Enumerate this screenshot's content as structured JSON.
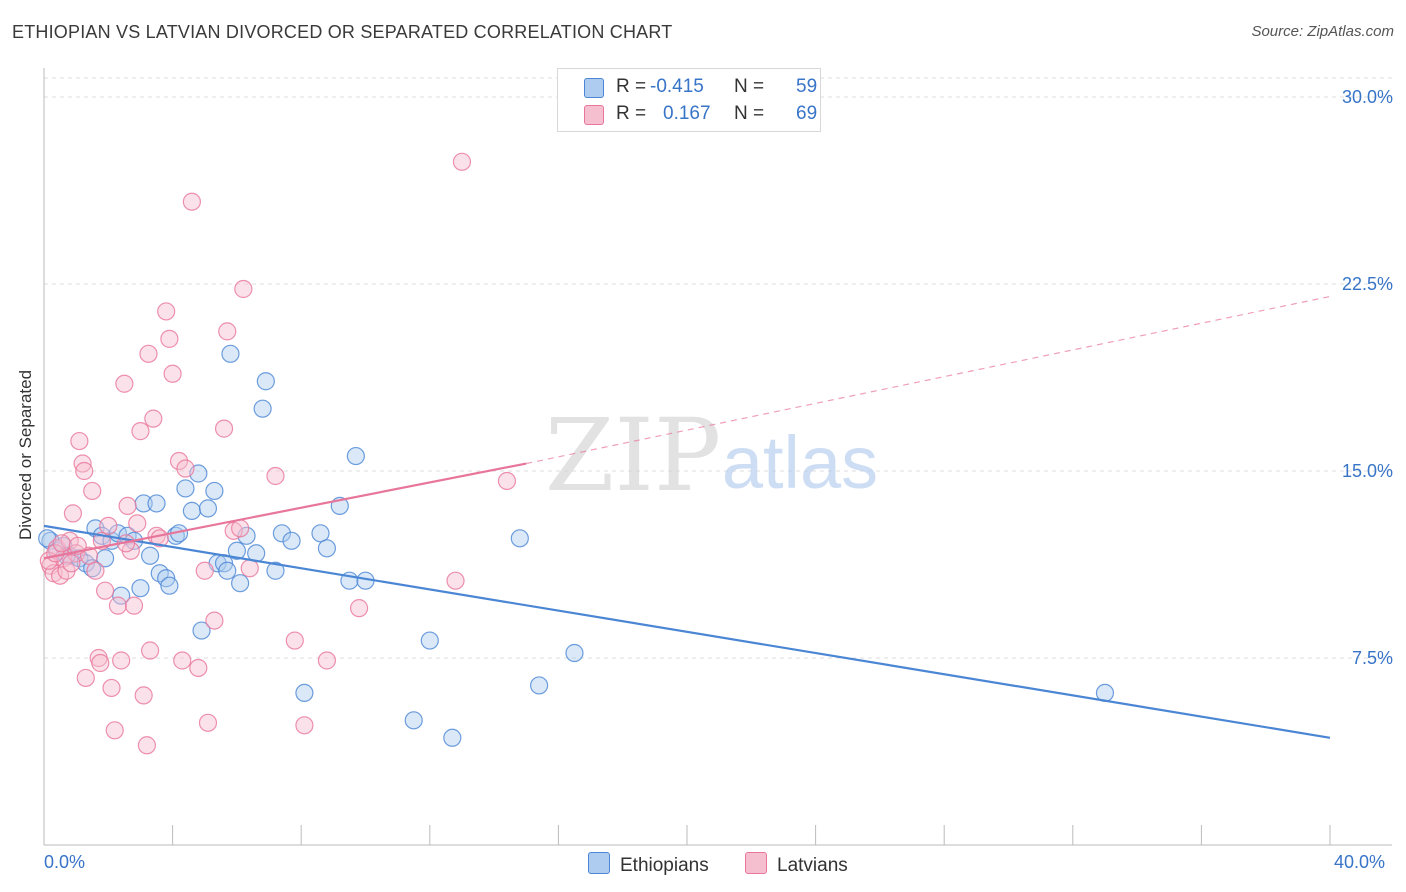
{
  "header": {
    "title": "ETHIOPIAN VS LATVIAN DIVORCED OR SEPARATED CORRELATION CHART",
    "source": "Source: ZipAtlas.com"
  },
  "colors": {
    "ethiopians": "#4a86d4",
    "ethiopians_fill": "#aecbf0",
    "latvians": "#e8769a",
    "latvians_fill": "#f6bfd0",
    "axis_label": "#3874c8"
  },
  "watermark": {
    "zip": "ZIP",
    "atlas": "atlas"
  },
  "legend": {
    "rows": [
      {
        "r_label": "R =",
        "r_value": "-0.415",
        "n_label": "N =",
        "n_value": "59"
      },
      {
        "r_label": "R =",
        "r_value": "0.167",
        "n_label": "N =",
        "n_value": "69"
      }
    ]
  },
  "bottom_legend": {
    "ethiopians": "Ethiopians",
    "latvians": "Latvians"
  },
  "chart_data": {
    "type": "scatter",
    "ylabel": "Divorced or Separated",
    "xlim": [
      0,
      40
    ],
    "ylim": [
      0,
      30
    ],
    "x_tick_labels": {
      "start": "0.0%",
      "end": "40.0%"
    },
    "y_ticks": [
      {
        "value": 7.5,
        "label": "7.5%"
      },
      {
        "value": 15.0,
        "label": "15.0%"
      },
      {
        "value": 22.5,
        "label": "22.5%"
      },
      {
        "value": 30.0,
        "label": "30.0%"
      }
    ],
    "grid": true,
    "series": [
      {
        "name": "Ethiopians",
        "points": [
          [
            0.2,
            12.2
          ],
          [
            0.4,
            11.8
          ],
          [
            0.6,
            12.0
          ],
          [
            0.8,
            11.6
          ],
          [
            1.1,
            11.5
          ],
          [
            1.3,
            11.3
          ],
          [
            1.5,
            11.1
          ],
          [
            1.6,
            12.7
          ],
          [
            1.8,
            12.4
          ],
          [
            1.9,
            11.5
          ],
          [
            2.1,
            12.2
          ],
          [
            2.3,
            12.5
          ],
          [
            2.4,
            10.0
          ],
          [
            2.6,
            12.4
          ],
          [
            2.8,
            12.2
          ],
          [
            3.0,
            10.3
          ],
          [
            3.1,
            13.7
          ],
          [
            3.3,
            11.6
          ],
          [
            3.5,
            13.7
          ],
          [
            3.6,
            10.9
          ],
          [
            3.8,
            10.7
          ],
          [
            3.9,
            10.4
          ],
          [
            4.1,
            12.4
          ],
          [
            4.2,
            12.5
          ],
          [
            4.4,
            14.3
          ],
          [
            4.6,
            13.4
          ],
          [
            4.8,
            14.9
          ],
          [
            4.9,
            8.6
          ],
          [
            5.1,
            13.5
          ],
          [
            5.3,
            14.2
          ],
          [
            5.4,
            11.3
          ],
          [
            5.6,
            11.3
          ],
          [
            5.7,
            11.0
          ],
          [
            5.8,
            19.7
          ],
          [
            6.0,
            11.8
          ],
          [
            6.1,
            10.5
          ],
          [
            6.3,
            12.4
          ],
          [
            6.6,
            11.7
          ],
          [
            6.8,
            17.5
          ],
          [
            6.9,
            18.6
          ],
          [
            7.2,
            11.0
          ],
          [
            7.4,
            12.5
          ],
          [
            7.7,
            12.2
          ],
          [
            8.1,
            6.1
          ],
          [
            8.6,
            12.5
          ],
          [
            8.8,
            11.9
          ],
          [
            9.2,
            13.6
          ],
          [
            9.5,
            10.6
          ],
          [
            9.7,
            15.6
          ],
          [
            10.0,
            10.6
          ],
          [
            11.5,
            5.0
          ],
          [
            12.0,
            8.2
          ],
          [
            12.7,
            4.3
          ],
          [
            14.8,
            12.3
          ],
          [
            15.4,
            6.4
          ],
          [
            16.5,
            7.7
          ],
          [
            33.0,
            6.1
          ],
          [
            0.1,
            12.3
          ],
          [
            0.7,
            11.6
          ]
        ],
        "trend": {
          "x": [
            0,
            40
          ],
          "y": [
            12.8,
            4.3
          ]
        }
      },
      {
        "name": "Latvians",
        "points": [
          [
            0.2,
            11.2
          ],
          [
            0.3,
            10.9
          ],
          [
            0.4,
            11.9
          ],
          [
            0.5,
            10.8
          ],
          [
            0.6,
            11.5
          ],
          [
            0.7,
            11.0
          ],
          [
            0.8,
            12.2
          ],
          [
            0.9,
            13.3
          ],
          [
            1.0,
            11.7
          ],
          [
            1.1,
            16.2
          ],
          [
            1.2,
            15.3
          ],
          [
            1.3,
            6.7
          ],
          [
            1.4,
            11.6
          ],
          [
            1.5,
            14.2
          ],
          [
            1.6,
            11.0
          ],
          [
            1.7,
            7.5
          ],
          [
            1.75,
            7.3
          ],
          [
            1.8,
            12.2
          ],
          [
            1.9,
            10.2
          ],
          [
            2.0,
            12.8
          ],
          [
            2.1,
            6.3
          ],
          [
            2.2,
            4.6
          ],
          [
            2.3,
            9.6
          ],
          [
            2.4,
            7.4
          ],
          [
            2.5,
            18.5
          ],
          [
            2.6,
            13.6
          ],
          [
            2.7,
            11.8
          ],
          [
            2.8,
            9.6
          ],
          [
            2.9,
            12.9
          ],
          [
            3.0,
            16.6
          ],
          [
            3.1,
            6.0
          ],
          [
            3.2,
            4.0
          ],
          [
            3.25,
            19.7
          ],
          [
            3.3,
            7.8
          ],
          [
            3.4,
            17.1
          ],
          [
            3.5,
            12.4
          ],
          [
            3.6,
            12.3
          ],
          [
            3.8,
            21.4
          ],
          [
            3.9,
            20.3
          ],
          [
            4.0,
            18.9
          ],
          [
            4.2,
            15.4
          ],
          [
            4.3,
            7.4
          ],
          [
            4.4,
            15.1
          ],
          [
            4.6,
            25.8
          ],
          [
            4.8,
            7.1
          ],
          [
            5.0,
            11.0
          ],
          [
            5.1,
            4.9
          ],
          [
            5.3,
            9.0
          ],
          [
            5.6,
            16.7
          ],
          [
            5.7,
            20.6
          ],
          [
            5.9,
            12.6
          ],
          [
            6.2,
            22.3
          ],
          [
            6.4,
            11.1
          ],
          [
            7.2,
            14.8
          ],
          [
            7.8,
            8.2
          ],
          [
            8.1,
            4.8
          ],
          [
            8.8,
            7.4
          ],
          [
            9.8,
            9.5
          ],
          [
            12.8,
            10.6
          ],
          [
            13.0,
            27.4
          ],
          [
            14.4,
            14.6
          ],
          [
            0.15,
            11.4
          ],
          [
            0.35,
            11.7
          ],
          [
            0.55,
            12.1
          ],
          [
            0.85,
            11.3
          ],
          [
            1.05,
            12.0
          ],
          [
            2.55,
            12.1
          ],
          [
            6.1,
            12.7
          ],
          [
            1.25,
            15.0
          ]
        ],
        "trend": {
          "x": [
            0,
            15
          ],
          "y": [
            11.5,
            15.3
          ]
        },
        "trend_extension": {
          "x": [
            15,
            40
          ],
          "y": [
            15.3,
            22.0
          ]
        }
      }
    ]
  }
}
